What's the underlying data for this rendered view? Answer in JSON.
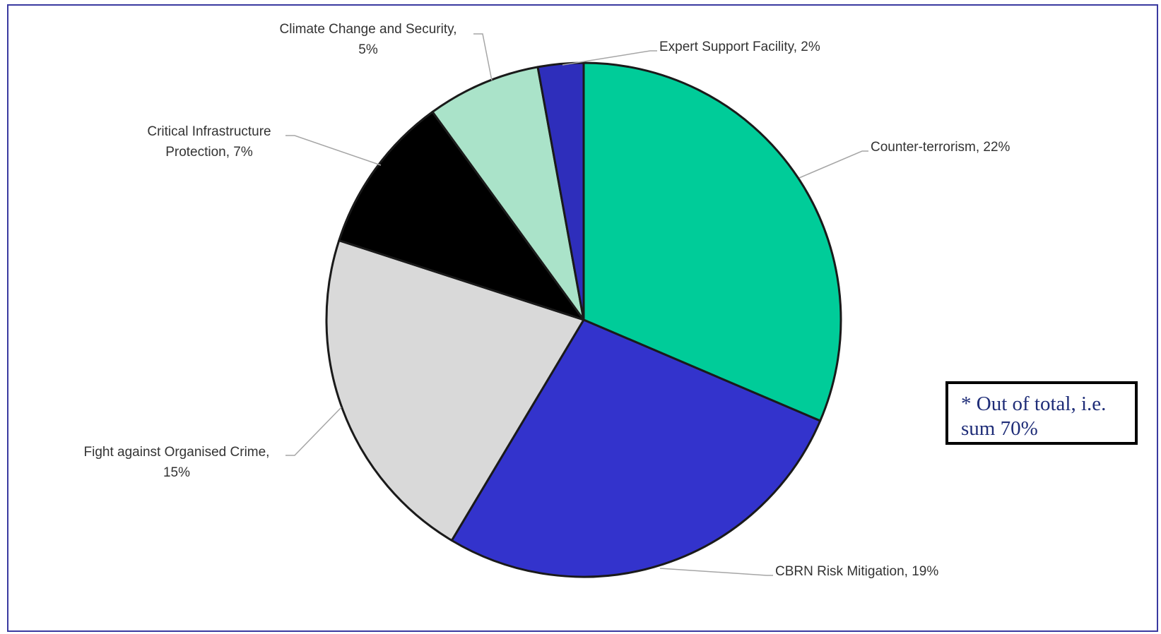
{
  "chart_data": {
    "type": "pie",
    "slices": [
      {
        "label": "Counter-terrorism, 22%",
        "value": 22,
        "color": "#00cc99"
      },
      {
        "label": "CBRN Risk Mitigation, 19%",
        "value": 19,
        "color": "#3333cc"
      },
      {
        "label": "Fight against Organised Crime, 15%",
        "value": 15,
        "color": "#d9d9d9"
      },
      {
        "label": "Critical Infrastructure Protection, 7%",
        "value": 7,
        "color": "#000000"
      },
      {
        "label": "Climate Change and Security, 5%",
        "value": 5,
        "color": "#aae3c9"
      },
      {
        "label": "Expert Support Facility, 2%",
        "value": 2,
        "color": "#2e2ebb"
      }
    ],
    "labels": {
      "counter_terrorism": "Counter-terrorism, 22%",
      "cbrn": "CBRN Risk Mitigation, 19%",
      "organised_crime_line1": "Fight against Organised Crime,",
      "organised_crime_line2": "15%",
      "critical_line1": "Critical Infrastructure",
      "critical_line2": "Protection, 7%",
      "climate_line1": "Climate Change and Security,",
      "climate_line2": "5%",
      "expert": "Expert Support Facility, 2%"
    },
    "note": "* Out of total, i.e. sum 70%"
  }
}
